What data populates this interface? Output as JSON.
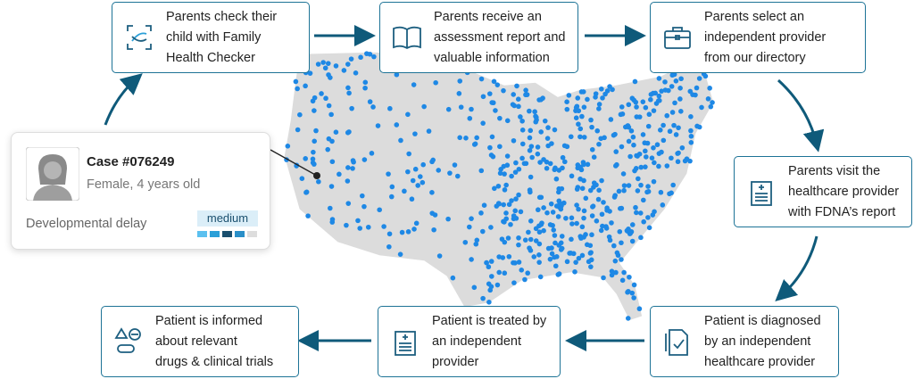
{
  "steps": [
    {
      "lines": [
        "Parents check their",
        "child with Family",
        "Health Checker"
      ]
    },
    {
      "lines": [
        "Parents receive an",
        "assessment report and",
        "valuable information"
      ]
    },
    {
      "lines": [
        "Parents select an",
        "independent provider",
        "from our directory"
      ]
    },
    {
      "lines": [
        "Parents visit the",
        "healthcare provider",
        "with FDNA’s report"
      ]
    },
    {
      "lines": [
        "Patient is diagnosed",
        "by an independent",
        "healthcare provider"
      ]
    },
    {
      "lines": [
        "Patient is treated by",
        "an independent",
        "provider"
      ]
    },
    {
      "lines": [
        "Patient is informed",
        "about relevant",
        "drugs & clinical trials"
      ]
    }
  ],
  "case": {
    "title": "Case #076249",
    "subtitle": "Female, 4 years old",
    "condition": "Developmental delay",
    "severity": "medium"
  }
}
